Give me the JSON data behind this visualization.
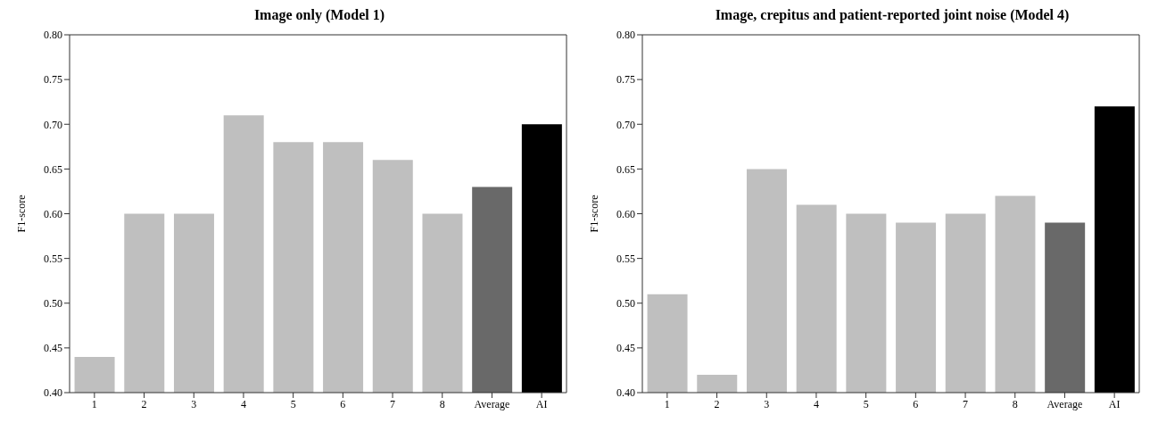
{
  "chart_data": [
    {
      "type": "bar",
      "title": "Image only (Model 1)",
      "ylabel": "F1-score",
      "categories": [
        "1",
        "2",
        "3",
        "4",
        "5",
        "6",
        "7",
        "8",
        "Average",
        "AI"
      ],
      "values": [
        0.44,
        0.6,
        0.6,
        0.71,
        0.68,
        0.68,
        0.66,
        0.6,
        0.63,
        0.7
      ],
      "colors": [
        "#bfbfbf",
        "#bfbfbf",
        "#bfbfbf",
        "#bfbfbf",
        "#bfbfbf",
        "#bfbfbf",
        "#bfbfbf",
        "#bfbfbf",
        "#696969",
        "#000000"
      ],
      "ylim": [
        0.4,
        0.8
      ],
      "yticks": [
        {
          "value": 0.4,
          "label": "0.40"
        },
        {
          "value": 0.45,
          "label": "0.45"
        },
        {
          "value": 0.5,
          "label": "0.50"
        },
        {
          "value": 0.55,
          "label": "0.55"
        },
        {
          "value": 0.6,
          "label": "0.60"
        },
        {
          "value": 0.65,
          "label": "0.65"
        },
        {
          "value": 0.7,
          "label": "0.70"
        },
        {
          "value": 0.75,
          "label": "0.75"
        },
        {
          "value": 0.8,
          "label": "0.80"
        }
      ],
      "grid": false,
      "legend": false
    },
    {
      "type": "bar",
      "title": "Image, crepitus and patient-reported joint noise (Model 4)",
      "ylabel": "F1-score",
      "categories": [
        "1",
        "2",
        "3",
        "4",
        "5",
        "6",
        "7",
        "8",
        "Average",
        "AI"
      ],
      "values": [
        0.51,
        0.42,
        0.65,
        0.61,
        0.6,
        0.59,
        0.6,
        0.62,
        0.59,
        0.72
      ],
      "colors": [
        "#bfbfbf",
        "#bfbfbf",
        "#bfbfbf",
        "#bfbfbf",
        "#bfbfbf",
        "#bfbfbf",
        "#bfbfbf",
        "#bfbfbf",
        "#696969",
        "#000000"
      ],
      "ylim": [
        0.4,
        0.8
      ],
      "yticks": [
        {
          "value": 0.4,
          "label": "0.40"
        },
        {
          "value": 0.45,
          "label": "0.45"
        },
        {
          "value": 0.5,
          "label": "0.50"
        },
        {
          "value": 0.55,
          "label": "0.55"
        },
        {
          "value": 0.6,
          "label": "0.60"
        },
        {
          "value": 0.65,
          "label": "0.65"
        },
        {
          "value": 0.7,
          "label": "0.70"
        },
        {
          "value": 0.75,
          "label": "0.75"
        },
        {
          "value": 0.8,
          "label": "0.80"
        }
      ],
      "grid": false,
      "legend": false
    }
  ]
}
